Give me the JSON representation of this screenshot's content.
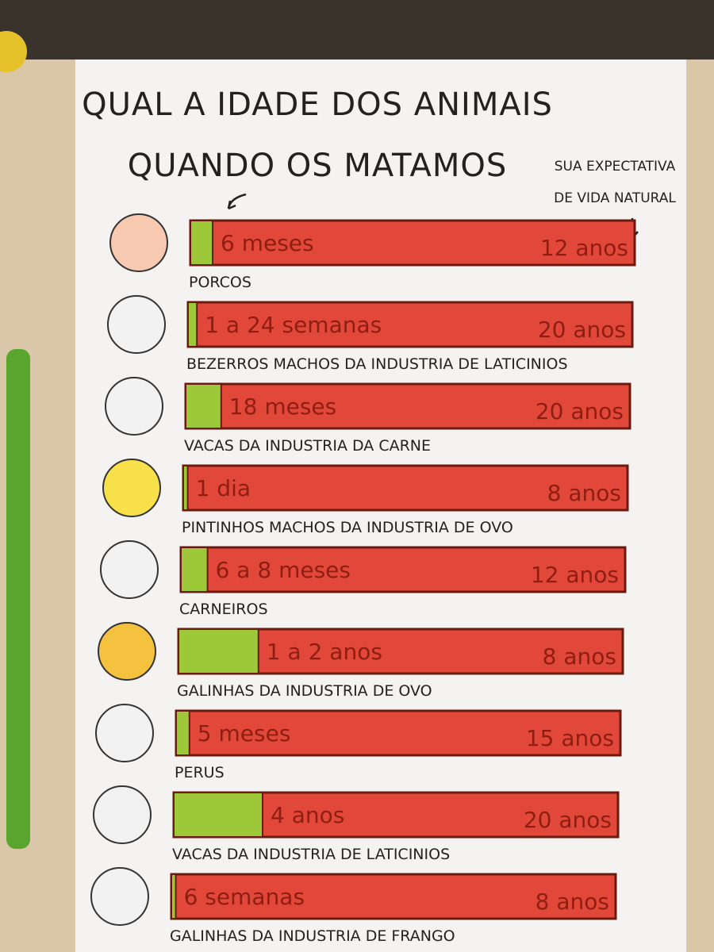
{
  "header": {
    "title_line1": "QUAL A IDADE DOS ANIMAIS",
    "title_line2": "QUANDO OS MATAMOS",
    "note_line1": "SUA EXPECTATIVA",
    "note_line2": "DE VIDA NATURAL"
  },
  "rows": [
    {
      "label": "PORCOS",
      "killed_age": "6 meses",
      "lifespan": "12 anos",
      "killed_share": 5
    },
    {
      "label": "BEZERROS MACHOS DA INDUSTRIA DE LATICINIOS",
      "killed_age": "1 a 24 semanas",
      "lifespan": "20 anos",
      "killed_share": 2
    },
    {
      "label": "VACAS DA INDUSTRIA DA CARNE",
      "killed_age": "18 meses",
      "lifespan": "20 anos",
      "killed_share": 8
    },
    {
      "label": "PINTINHOS MACHOS DA INDUSTRIA DE OVO",
      "killed_age": "1 dia",
      "lifespan": "8 anos",
      "killed_share": 1
    },
    {
      "label": "CARNEIROS",
      "killed_age": "6 a 8 meses",
      "lifespan": "12 anos",
      "killed_share": 6
    },
    {
      "label": "GALINHAS DA INDUSTRIA DE OVO",
      "killed_age": "1 a 2 anos",
      "lifespan": "8 anos",
      "killed_share": 18
    },
    {
      "label": "PERUS",
      "killed_age": "5 meses",
      "lifespan": "15 anos",
      "killed_share": 3
    },
    {
      "label": "VACAS DA INDUSTRIA DE LATICINIOS",
      "killed_age": "4 anos",
      "lifespan": "20 anos",
      "killed_share": 20
    },
    {
      "label": "GALINHAS DA INDUSTRIA DE FRANGO",
      "killed_age": "6 semanas",
      "lifespan": "8 anos",
      "killed_share": 1
    }
  ]
}
